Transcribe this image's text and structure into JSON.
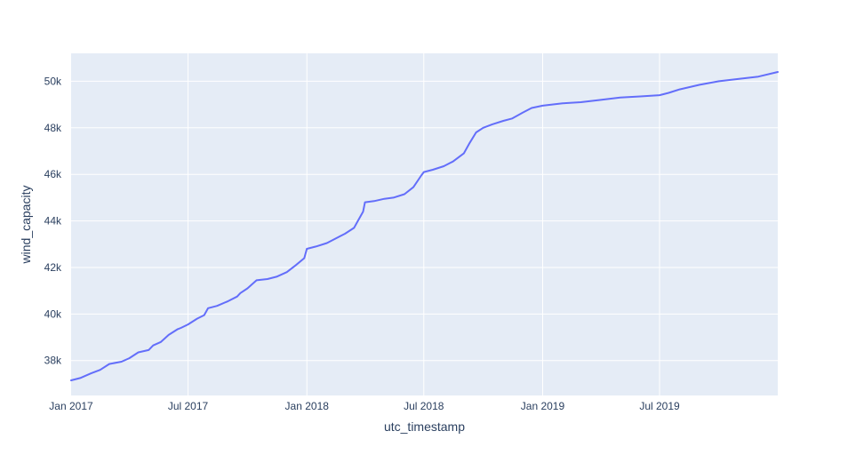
{
  "chart_data": {
    "type": "line",
    "xlabel": "utc_timestamp",
    "ylabel": "wind_capacity",
    "x_range": [
      "2017-01-01",
      "2019-12-31"
    ],
    "y_range": [
      36500,
      51200
    ],
    "grid": true,
    "colors": {
      "plot_background": "#e5ecf6",
      "grid": "#ffffff",
      "line": "#636efa",
      "text": "#2a3f5f"
    },
    "x_ticks": [
      {
        "value": "2017-01-01",
        "label": "Jan 2017"
      },
      {
        "value": "2017-07-01",
        "label": "Jul 2017"
      },
      {
        "value": "2018-01-01",
        "label": "Jan 2018"
      },
      {
        "value": "2018-07-01",
        "label": "Jul 2018"
      },
      {
        "value": "2019-01-01",
        "label": "Jan 2019"
      },
      {
        "value": "2019-07-01",
        "label": "Jul 2019"
      }
    ],
    "y_ticks": [
      {
        "value": 38000,
        "label": "38k"
      },
      {
        "value": 40000,
        "label": "40k"
      },
      {
        "value": 42000,
        "label": "42k"
      },
      {
        "value": 44000,
        "label": "44k"
      },
      {
        "value": 46000,
        "label": "46k"
      },
      {
        "value": 48000,
        "label": "48k"
      },
      {
        "value": 50000,
        "label": "50k"
      }
    ],
    "series": [
      {
        "x": [
          "2017-01-01",
          "2017-01-15",
          "2017-02-01",
          "2017-02-15",
          "2017-03-01",
          "2017-03-20",
          "2017-04-01",
          "2017-04-15",
          "2017-05-01",
          "2017-05-08",
          "2017-05-20",
          "2017-06-01",
          "2017-06-15",
          "2017-06-20",
          "2017-07-01",
          "2017-07-15",
          "2017-07-26",
          "2017-08-01",
          "2017-08-15",
          "2017-09-01",
          "2017-09-15",
          "2017-09-20",
          "2017-10-01",
          "2017-10-15",
          "2017-11-01",
          "2017-11-15",
          "2017-12-01",
          "2017-12-15",
          "2017-12-28",
          "2018-01-01",
          "2018-01-15",
          "2018-02-01",
          "2018-02-15",
          "2018-03-01",
          "2018-03-15",
          "2018-03-20",
          "2018-03-29",
          "2018-04-01",
          "2018-04-15",
          "2018-05-01",
          "2018-05-15",
          "2018-06-01",
          "2018-06-15",
          "2018-06-27",
          "2018-07-01",
          "2018-07-15",
          "2018-08-01",
          "2018-08-15",
          "2018-09-01",
          "2018-09-10",
          "2018-09-20",
          "2018-10-01",
          "2018-10-15",
          "2018-11-01",
          "2018-11-15",
          "2018-12-01",
          "2018-12-15",
          "2019-01-01",
          "2019-02-01",
          "2019-03-01",
          "2019-04-01",
          "2019-05-01",
          "2019-06-01",
          "2019-07-01",
          "2019-07-15",
          "2019-08-01",
          "2019-09-01",
          "2019-10-01",
          "2019-11-01",
          "2019-12-01",
          "2019-12-31"
        ],
        "y": [
          37150,
          37250,
          37450,
          37600,
          37850,
          37950,
          38100,
          38350,
          38450,
          38650,
          38800,
          39100,
          39350,
          39400,
          39550,
          39800,
          39950,
          40250,
          40350,
          40550,
          40750,
          40900,
          41100,
          41450,
          41500,
          41600,
          41800,
          42100,
          42400,
          42800,
          42900,
          43050,
          43250,
          43450,
          43700,
          43950,
          44400,
          44800,
          44850,
          44950,
          45000,
          45150,
          45450,
          45950,
          46100,
          46200,
          46350,
          46550,
          46900,
          47350,
          47800,
          48000,
          48150,
          48300,
          48400,
          48650,
          48850,
          48950,
          49050,
          49100,
          49200,
          49300,
          49350,
          49400,
          49500,
          49650,
          49850,
          50000,
          50100,
          50200,
          50400
        ]
      }
    ]
  }
}
